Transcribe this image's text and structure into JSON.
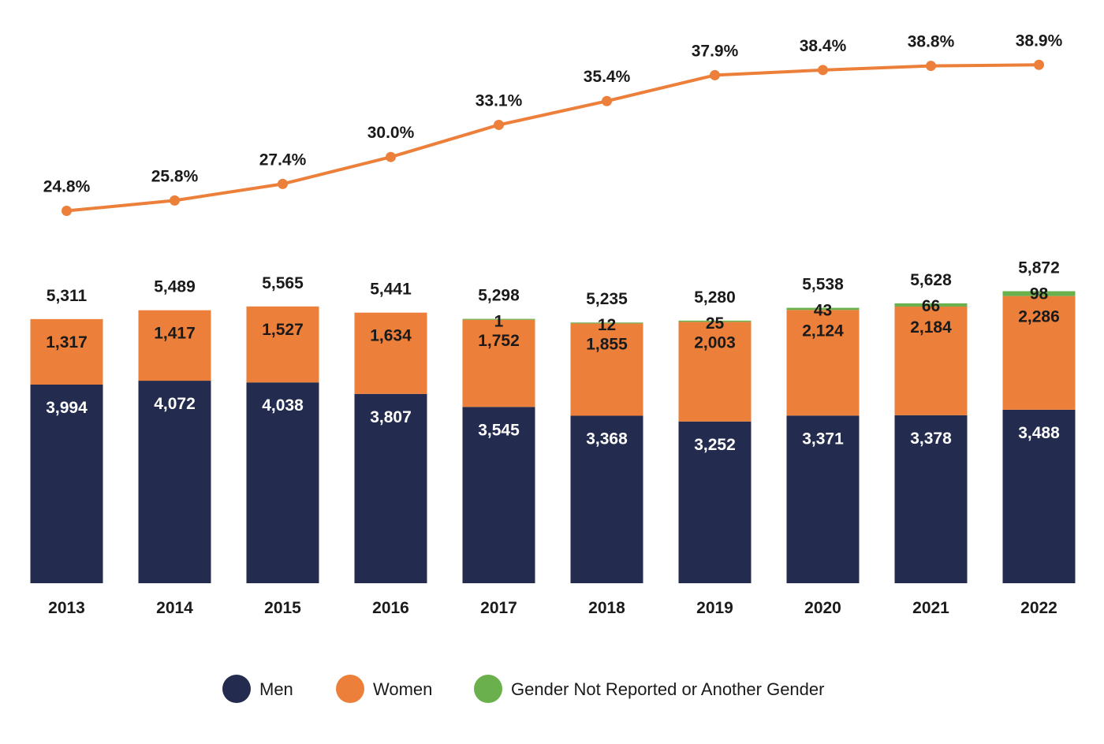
{
  "chart_data": {
    "type": "bar",
    "stacked": true,
    "categories": [
      "2013",
      "2014",
      "2015",
      "2016",
      "2017",
      "2018",
      "2019",
      "2020",
      "2021",
      "2022"
    ],
    "series": [
      {
        "name": "Men",
        "color": "#232b4e",
        "values": [
          3994,
          4072,
          4038,
          3807,
          3545,
          3368,
          3252,
          3371,
          3378,
          3488
        ],
        "labels": [
          "3,994",
          "4,072",
          "4,038",
          "3,807",
          "3,545",
          "3,368",
          "3,252",
          "3,371",
          "3,378",
          "3,488"
        ]
      },
      {
        "name": "Women",
        "color": "#ec7f3a",
        "values": [
          1317,
          1417,
          1527,
          1634,
          1752,
          1855,
          2003,
          2124,
          2184,
          2286
        ],
        "labels": [
          "1,317",
          "1,417",
          "1,527",
          "1,634",
          "1,752",
          "1,855",
          "2,003",
          "2,124",
          "2,184",
          "2,286"
        ]
      },
      {
        "name": "Gender Not Reported or Another Gender",
        "color": "#6ab04c",
        "values": [
          0,
          0,
          0,
          0,
          1,
          12,
          25,
          43,
          66,
          98
        ],
        "labels": [
          "",
          "",
          "",
          "",
          "1",
          "12",
          "25",
          "43",
          "66",
          "98"
        ]
      }
    ],
    "totals": [
      5311,
      5489,
      5565,
      5441,
      5298,
      5235,
      5280,
      5538,
      5628,
      5872
    ],
    "total_labels": [
      "5,311",
      "5,489",
      "5,565",
      "5,441",
      "5,298",
      "5,235",
      "5,280",
      "5,538",
      "5,628",
      "5,872"
    ],
    "line": {
      "color": "#ec7f3a",
      "values": [
        24.8,
        25.8,
        27.4,
        30.0,
        33.1,
        35.4,
        37.9,
        38.4,
        38.8,
        38.9
      ],
      "labels": [
        "24.8%",
        "25.8%",
        "27.4%",
        "30.0%",
        "33.1%",
        "35.4%",
        "37.9%",
        "38.4%",
        "38.8%",
        "38.9%"
      ]
    },
    "legend": {
      "position": "bottom",
      "items": [
        {
          "label": "Men",
          "color": "#232b4e"
        },
        {
          "label": "Women",
          "color": "#ec7f3a"
        },
        {
          "label": "Gender Not Reported or Another Gender",
          "color": "#6ab04c"
        }
      ]
    },
    "grid": false
  }
}
